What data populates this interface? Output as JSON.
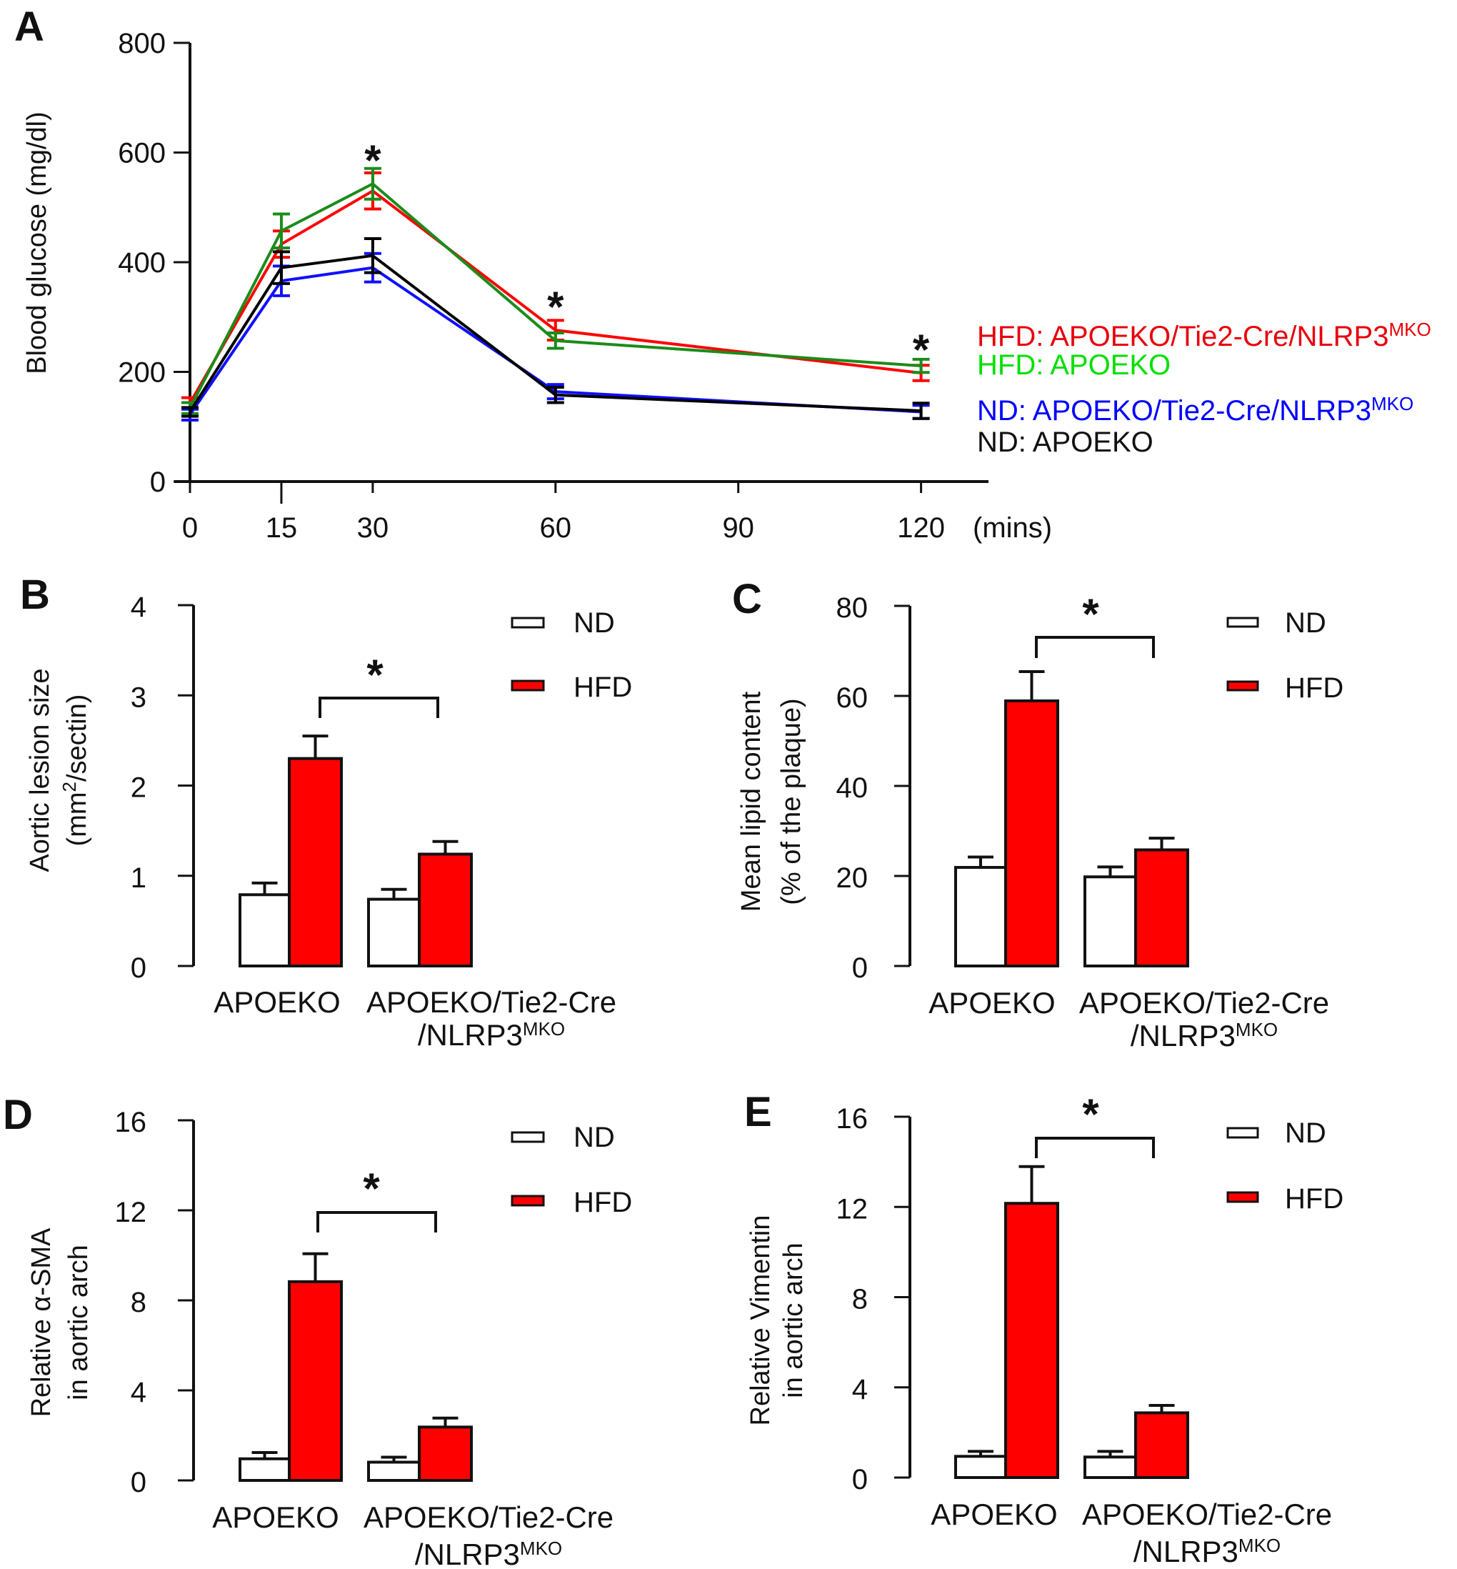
{
  "chart_data": [
    {
      "panel": "A",
      "type": "line",
      "title": "",
      "xlabel": "(mins)",
      "ylabel": "Blood glucose (mg/dl)",
      "x": [
        0,
        15,
        30,
        60,
        120
      ],
      "xticks": [
        0,
        15,
        30,
        60,
        90,
        120
      ],
      "yticks": [
        0,
        200,
        400,
        600,
        800
      ],
      "xlim": [
        0,
        120
      ],
      "ylim": [
        0,
        800
      ],
      "grid": false,
      "legend_position": "right",
      "significance_at_x": [
        30,
        60,
        120
      ],
      "significance_mark": "*",
      "series": [
        {
          "name": "HFD: APOEKO/Tie2-Cre/NLRP3",
          "name_sup": "MKO",
          "color": "#ff0000",
          "legend_color": "#e8000b",
          "values": [
            143,
            433,
            530,
            276,
            198
          ],
          "errors": [
            10,
            24,
            33,
            18,
            14
          ]
        },
        {
          "name": "HFD: APOEKO",
          "name_sup": "",
          "color": "#1a8c1a",
          "legend_color": "#00e000",
          "values": [
            134,
            457,
            543,
            257,
            211
          ],
          "errors": [
            10,
            31,
            28,
            14,
            12
          ]
        },
        {
          "name": "ND: APOEKO/Tie2-Cre/NLRP3",
          "name_sup": "MKO",
          "color": "#1010ff",
          "legend_color": "#0000ff",
          "values": [
            122,
            366,
            390,
            164,
            127
          ],
          "errors": [
            10,
            27,
            26,
            13,
            12
          ]
        },
        {
          "name": "ND: APOEKO",
          "name_sup": "",
          "color": "#000000",
          "legend_color": "#111111",
          "values": [
            127,
            390,
            412,
            158,
            129
          ],
          "errors": [
            8,
            29,
            31,
            14,
            14
          ]
        }
      ]
    },
    {
      "panel": "B",
      "type": "bar",
      "ylabel_lines": [
        "Aortic lesion size",
        "(mm",
        "2",
        "/sectin)"
      ],
      "categories": [
        "APOEKO",
        "APOEKO/Tie2-Cre /NLRP3MKO"
      ],
      "category_lines": [
        [
          "APOEKO"
        ],
        [
          "APOEKO/Tie2-Cre",
          "/NLRP3",
          "MKO"
        ]
      ],
      "yticks": [
        0,
        1,
        2,
        3,
        4
      ],
      "ylim": [
        0,
        4
      ],
      "legend_position": "top-right",
      "series": [
        {
          "name": "ND",
          "color": "#ffffff",
          "values": [
            0.79,
            0.74
          ],
          "errors": [
            0.13,
            0.11
          ]
        },
        {
          "name": "HFD",
          "color": "#ff0000",
          "values": [
            2.3,
            1.24
          ],
          "errors": [
            0.25,
            0.14
          ]
        }
      ],
      "significance": {
        "between": [
          "APOEKO HFD",
          "APOEKO/Tie2-Cre/NLRP3MKO HFD"
        ],
        "mark": "*"
      }
    },
    {
      "panel": "C",
      "type": "bar",
      "ylabel_lines": [
        "Mean lipid content",
        "(% of the plaque)"
      ],
      "categories": [
        "APOEKO",
        "APOEKO/Tie2-Cre /NLRP3MKO"
      ],
      "category_lines": [
        [
          "APOEKO"
        ],
        [
          "APOEKO/Tie2-Cre",
          "/NLRP3",
          "MKO"
        ]
      ],
      "yticks": [
        0,
        20,
        40,
        60,
        80
      ],
      "ylim": [
        0,
        80
      ],
      "legend_position": "top-right",
      "series": [
        {
          "name": "ND",
          "color": "#ffffff",
          "values": [
            21.9,
            19.8
          ],
          "errors": [
            2.3,
            2.2
          ]
        },
        {
          "name": "HFD",
          "color": "#ff0000",
          "values": [
            58.9,
            25.8
          ],
          "errors": [
            6.5,
            2.6
          ]
        }
      ],
      "significance": {
        "between": [
          "APOEKO HFD",
          "APOEKO/Tie2-Cre/NLRP3MKO HFD"
        ],
        "mark": "*"
      }
    },
    {
      "panel": "D",
      "type": "bar",
      "ylabel_lines": [
        "Relative α-SMA",
        "in aortic arch"
      ],
      "categories": [
        "APOEKO",
        "APOEKO/Tie2-Cre /NLRP3MKO"
      ],
      "category_lines": [
        [
          "APOEKO"
        ],
        [
          "APOEKO/Tie2-Cre",
          "/NLRP3",
          "MKO"
        ]
      ],
      "yticks": [
        0,
        4,
        8,
        12,
        16
      ],
      "ylim": [
        0,
        16
      ],
      "legend_position": "top-right",
      "series": [
        {
          "name": "ND",
          "color": "#ffffff",
          "values": [
            0.96,
            0.81
          ],
          "errors": [
            0.28,
            0.22
          ]
        },
        {
          "name": "HFD",
          "color": "#ff0000",
          "values": [
            8.83,
            2.37
          ],
          "errors": [
            1.24,
            0.4
          ]
        }
      ],
      "significance": {
        "between": [
          "APOEKO HFD",
          "APOEKO/Tie2-Cre/NLRP3MKO HFD"
        ],
        "mark": "*"
      }
    },
    {
      "panel": "E",
      "type": "bar",
      "ylabel_lines": [
        "Relative Vimentin",
        "in aortic arch"
      ],
      "categories": [
        "APOEKO",
        "APOEKO/Tie2-Cre /NLRP3MKO"
      ],
      "category_lines": [
        [
          "APOEKO"
        ],
        [
          "APOEKO/Tie2-Cre",
          "/NLRP3",
          "MKO"
        ]
      ],
      "yticks": [
        0,
        4,
        8,
        12,
        16
      ],
      "ylim": [
        0,
        16
      ],
      "legend_position": "top-right",
      "series": [
        {
          "name": "ND",
          "color": "#ffffff",
          "values": [
            0.94,
            0.91
          ],
          "errors": [
            0.22,
            0.25
          ]
        },
        {
          "name": "HFD",
          "color": "#ff0000",
          "values": [
            12.16,
            2.87
          ],
          "errors": [
            1.63,
            0.33
          ]
        }
      ],
      "significance": {
        "between": [
          "APOEKO HFD",
          "APOEKO/Tie2-Cre/NLRP3MKO HFD"
        ],
        "mark": "*"
      }
    }
  ]
}
